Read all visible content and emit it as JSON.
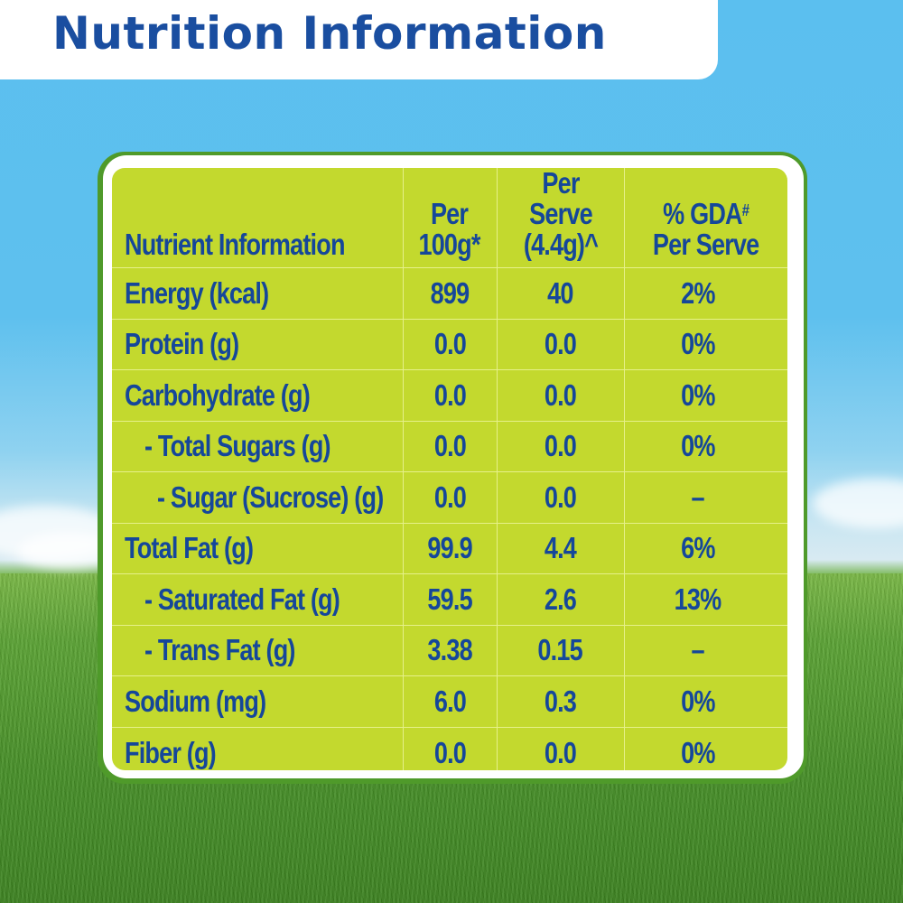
{
  "title": "Nutrition Information",
  "colors": {
    "title_text": "#1a4ea0",
    "table_background": "#c3d92e",
    "table_text": "#15479a",
    "panel_border": "#4f9a2a"
  },
  "table": {
    "headers": {
      "nutrient": "Nutrient Information",
      "per100_line1": "Per",
      "per100_line2": "100g*",
      "serve_line1": "Per Serve",
      "serve_line2": "(4.4g)^",
      "gda_line1": "% GDA",
      "gda_mark": "#",
      "gda_line2": "Per Serve"
    },
    "rows": [
      {
        "name": "Energy (kcal)",
        "per100": "899",
        "serve": "40",
        "gda": "2%"
      },
      {
        "name": "Protein (g)",
        "per100": "0.0",
        "serve": "0.0",
        "gda": "0%"
      },
      {
        "name": "Carbohydrate (g)",
        "per100": "0.0",
        "serve": "0.0",
        "gda": "0%"
      },
      {
        "name": "- Total Sugars (g)",
        "per100": "0.0",
        "serve": "0.0",
        "gda": "0%"
      },
      {
        "name": "- Sugar (Sucrose) (g)",
        "per100": "0.0",
        "serve": "0.0",
        "gda": "–"
      },
      {
        "name": "Total Fat (g)",
        "per100": "99.9",
        "serve": "4.4",
        "gda": "6%"
      },
      {
        "name": "- Saturated Fat (g)",
        "per100": "59.5",
        "serve": "2.6",
        "gda": "13%"
      },
      {
        "name": "- Trans Fat (g)",
        "per100": "3.38",
        "serve": "0.15",
        "gda": "–"
      },
      {
        "name": "Sodium (mg)",
        "per100": "6.0",
        "serve": "0.3",
        "gda": "0%"
      },
      {
        "name": "Fiber (g)",
        "per100": "0.0",
        "serve": "0.0",
        "gda": "0%"
      }
    ]
  }
}
